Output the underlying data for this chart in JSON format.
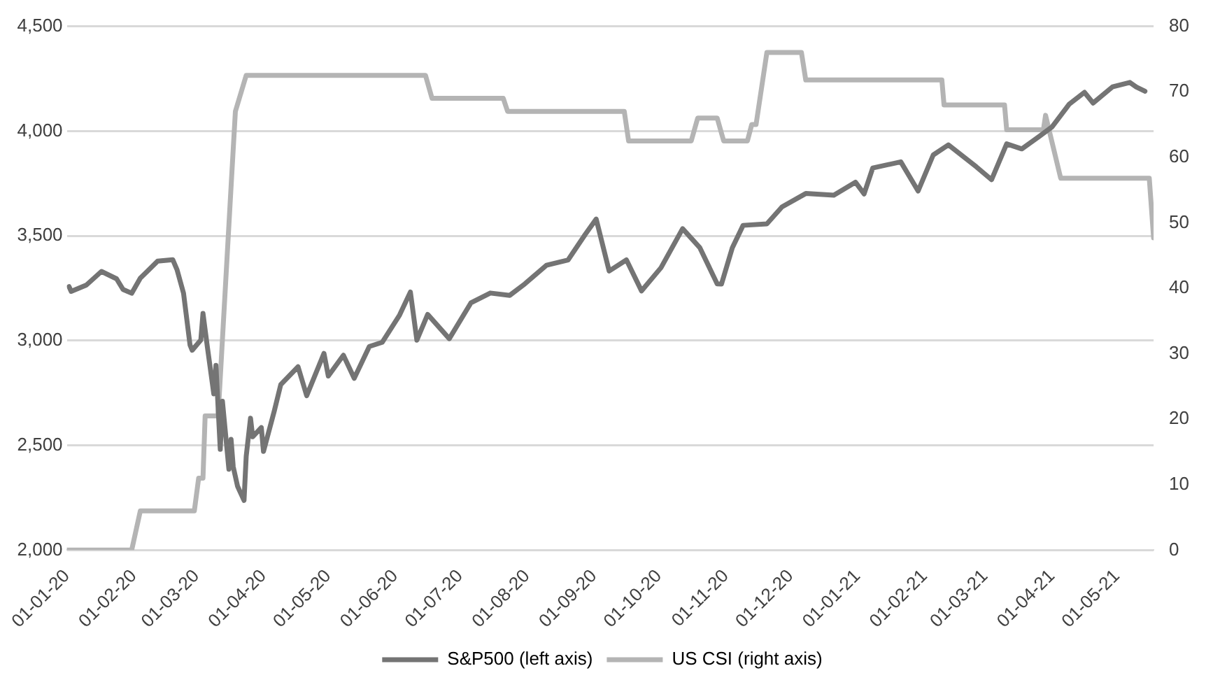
{
  "chart_data": {
    "type": "line",
    "xlim": [
      "2020-01-01",
      "2021-05-18"
    ],
    "xticks": [
      {
        "value": "2020-01-01",
        "label": "01-01-20"
      },
      {
        "value": "2020-02-01",
        "label": "01-02-20"
      },
      {
        "value": "2020-03-01",
        "label": "01-03-20"
      },
      {
        "value": "2020-04-01",
        "label": "01-04-20"
      },
      {
        "value": "2020-05-01",
        "label": "01-05-20"
      },
      {
        "value": "2020-06-01",
        "label": "01-06-20"
      },
      {
        "value": "2020-07-01",
        "label": "01-07-20"
      },
      {
        "value": "2020-08-01",
        "label": "01-08-20"
      },
      {
        "value": "2020-09-01",
        "label": "01-09-20"
      },
      {
        "value": "2020-10-01",
        "label": "01-10-20"
      },
      {
        "value": "2020-11-01",
        "label": "01-11-20"
      },
      {
        "value": "2020-12-01",
        "label": "01-12-20"
      },
      {
        "value": "2021-01-01",
        "label": "01-01-21"
      },
      {
        "value": "2021-02-01",
        "label": "01-02-21"
      },
      {
        "value": "2021-03-01",
        "label": "01-03-21"
      },
      {
        "value": "2021-04-01",
        "label": "01-04-21"
      },
      {
        "value": "2021-05-01",
        "label": "01-05-21"
      }
    ],
    "ylim": [
      2000,
      4500
    ],
    "yticks": [
      {
        "value": 2000,
        "label": "2,000"
      },
      {
        "value": 2500,
        "label": "2,500"
      },
      {
        "value": 3000,
        "label": "3,000"
      },
      {
        "value": 3500,
        "label": "3,500"
      },
      {
        "value": 4000,
        "label": "4,000"
      },
      {
        "value": 4500,
        "label": "4,500"
      }
    ],
    "y2lim": [
      0,
      80
    ],
    "y2ticks": [
      0,
      10,
      20,
      30,
      40,
      50,
      60,
      70,
      80
    ],
    "grid": "y",
    "legend": "bottom",
    "marker": "none",
    "line_style": "solid",
    "series": [
      {
        "name": "S&P500 (left axis)",
        "color": "#747474",
        "axis": "y",
        "x": [
          "2020-01-02",
          "2020-01-03",
          "2020-01-10",
          "2020-01-17",
          "2020-01-24",
          "2020-01-27",
          "2020-01-31",
          "2020-02-04",
          "2020-02-07",
          "2020-02-12",
          "2020-02-19",
          "2020-02-21",
          "2020-02-24",
          "2020-02-27",
          "2020-02-28",
          "2020-03-03",
          "2020-03-04",
          "2020-03-06",
          "2020-03-09",
          "2020-03-10",
          "2020-03-12",
          "2020-03-13",
          "2020-03-16",
          "2020-03-17",
          "2020-03-18",
          "2020-03-20",
          "2020-03-23",
          "2020-03-24",
          "2020-03-26",
          "2020-03-27",
          "2020-03-31",
          "2020-04-01",
          "2020-04-06",
          "2020-04-09",
          "2020-04-17",
          "2020-04-21",
          "2020-04-29",
          "2020-05-01",
          "2020-05-08",
          "2020-05-13",
          "2020-05-20",
          "2020-05-26",
          "2020-06-03",
          "2020-06-08",
          "2020-06-11",
          "2020-06-16",
          "2020-06-26",
          "2020-07-06",
          "2020-07-15",
          "2020-07-24",
          "2020-07-31",
          "2020-08-10",
          "2020-08-20",
          "2020-08-28",
          "2020-09-02",
          "2020-09-08",
          "2020-09-16",
          "2020-09-23",
          "2020-10-02",
          "2020-10-12",
          "2020-10-20",
          "2020-10-28",
          "2020-10-30",
          "2020-11-04",
          "2020-11-09",
          "2020-11-20",
          "2020-11-27",
          "2020-12-08",
          "2020-12-21",
          "2020-12-31",
          "2021-01-04",
          "2021-01-08",
          "2021-01-21",
          "2021-01-29",
          "2021-02-05",
          "2021-02-12",
          "2021-02-25",
          "2021-03-04",
          "2021-03-11",
          "2021-03-18",
          "2021-03-26",
          "2021-04-01",
          "2021-04-09",
          "2021-04-16",
          "2021-04-20",
          "2021-04-29",
          "2021-05-07",
          "2021-05-10",
          "2021-05-14"
        ],
        "values": [
          3258,
          3235,
          3265,
          3330,
          3295,
          3244,
          3226,
          3298,
          3328,
          3379,
          3386,
          3338,
          3226,
          2979,
          2954,
          3003,
          3130,
          2972,
          2746,
          2882,
          2481,
          2711,
          2386,
          2529,
          2398,
          2305,
          2237,
          2447,
          2630,
          2541,
          2585,
          2471,
          2664,
          2790,
          2875,
          2737,
          2939,
          2831,
          2930,
          2820,
          2972,
          2992,
          3122,
          3232,
          3002,
          3125,
          3009,
          3180,
          3227,
          3216,
          3271,
          3360,
          3385,
          3508,
          3580,
          3332,
          3385,
          3237,
          3348,
          3534,
          3443,
          3271,
          3270,
          3443,
          3550,
          3557,
          3638,
          3702,
          3694,
          3756,
          3700,
          3824,
          3853,
          3714,
          3886,
          3934,
          3829,
          3768,
          3939,
          3915,
          3974,
          4020,
          4129,
          4185,
          4134,
          4211,
          4232,
          4210,
          4190
        ]
      },
      {
        "name": "US CSI (right axis)",
        "color": "#b4b4b4",
        "axis": "y2",
        "x": [
          "2020-01-01",
          "2020-01-31",
          "2020-02-04",
          "2020-02-29",
          "2020-03-02",
          "2020-03-04",
          "2020-03-05",
          "2020-03-11",
          "2020-03-17",
          "2020-03-19",
          "2020-03-24",
          "2020-06-15",
          "2020-06-18",
          "2020-07-21",
          "2020-07-23",
          "2020-09-15",
          "2020-09-17",
          "2020-10-16",
          "2020-10-19",
          "2020-10-28",
          "2020-10-31",
          "2020-11-11",
          "2020-11-13",
          "2020-11-15",
          "2020-11-20",
          "2020-12-06",
          "2020-12-08",
          "2021-02-09",
          "2021-02-10",
          "2021-03-10",
          "2021-03-11",
          "2021-03-28",
          "2021-03-29",
          "2021-04-05",
          "2021-05-16",
          "2021-05-18"
        ],
        "values": [
          0,
          0,
          6,
          6,
          11,
          11,
          20.5,
          20.5,
          55.5,
          67,
          72.5,
          72.5,
          69,
          69,
          67,
          67,
          62.5,
          62.5,
          66,
          66,
          62.5,
          62.5,
          65,
          65,
          76,
          76,
          71.8,
          71.8,
          68,
          68,
          64.2,
          64.2,
          66.4,
          56.8,
          56.8,
          47.7
        ]
      }
    ]
  }
}
